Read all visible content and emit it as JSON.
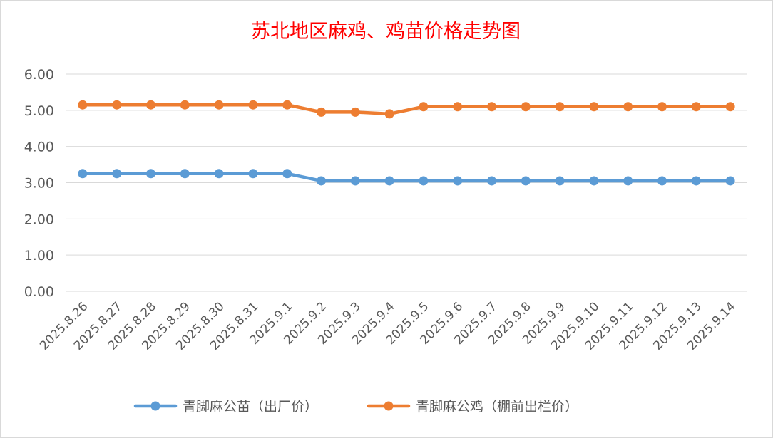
{
  "chart_data": {
    "type": "line",
    "title": "苏北地区麻鸡、鸡苗价格走势图",
    "categories": [
      "2025.8.26",
      "2025.8.27",
      "2025.8.28",
      "2025.8.29",
      "2025.8.30",
      "2025.8.31",
      "2025.9.1",
      "2025.9.2",
      "2025.9.3",
      "2025.9.4",
      "2025.9.5",
      "2025.9.6",
      "2025.9.7",
      "2025.9.8",
      "2025.9.9",
      "2025.9.10",
      "2025.9.11",
      "2025.9.12",
      "2025.9.13",
      "2025.9.14"
    ],
    "series": [
      {
        "name": "青脚麻公苗（出厂价）",
        "color": "#5b9bd5",
        "values": [
          3.25,
          3.25,
          3.25,
          3.25,
          3.25,
          3.25,
          3.25,
          3.05,
          3.05,
          3.05,
          3.05,
          3.05,
          3.05,
          3.05,
          3.05,
          3.05,
          3.05,
          3.05,
          3.05,
          3.05
        ]
      },
      {
        "name": "青脚麻公鸡（棚前出栏价）",
        "color": "#ed7d31",
        "values": [
          5.15,
          5.15,
          5.15,
          5.15,
          5.15,
          5.15,
          5.15,
          4.95,
          4.95,
          4.9,
          5.1,
          5.1,
          5.1,
          5.1,
          5.1,
          5.1,
          5.1,
          5.1,
          5.1,
          5.1
        ]
      }
    ],
    "ylim": [
      0,
      6
    ],
    "yticks": [
      "0.00",
      "1.00",
      "2.00",
      "3.00",
      "4.00",
      "5.00",
      "6.00"
    ],
    "grid": true,
    "legend": "bottom",
    "xlabel": "",
    "ylabel": ""
  }
}
